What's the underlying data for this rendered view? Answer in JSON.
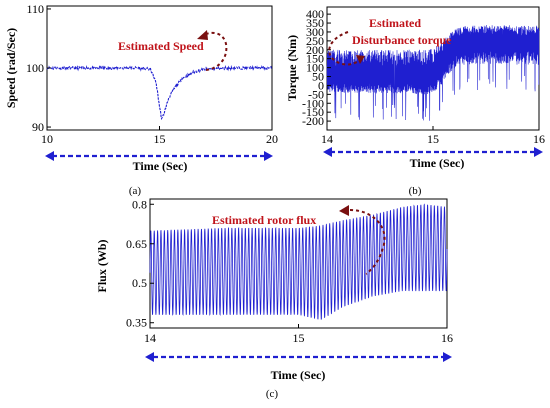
{
  "chart_data": [
    {
      "id": "a",
      "type": "line",
      "panel_label": "(a)",
      "annotation": "Estimated Speed",
      "xlabel": "Time (Sec)",
      "ylabel": "Speed (rad/Sec)",
      "xlim": [
        10,
        20
      ],
      "ylim": [
        89.5,
        110.5
      ],
      "xticks": [
        10,
        15,
        20
      ],
      "yticks": [
        90,
        100,
        110
      ],
      "color": "#1f1fd0",
      "series": [
        {
          "x": [
            10,
            11,
            12,
            13,
            14,
            14.6,
            14.85,
            15.0,
            15.1,
            15.2,
            15.4,
            15.7,
            16.0,
            16.5,
            17.0,
            18,
            19,
            20
          ],
          "y": [
            100,
            100,
            100,
            100,
            100,
            99.8,
            97.5,
            93.5,
            91.3,
            92.3,
            94.8,
            96.8,
            98.2,
            99.3,
            99.8,
            100,
            100,
            100
          ]
        }
      ]
    },
    {
      "id": "b",
      "type": "line",
      "panel_label": "(b)",
      "annotation_lines": [
        "Estimated",
        "Disturbance torque"
      ],
      "xlabel": "Time (Sec)",
      "ylabel": "Torque (Nm)",
      "xlim": [
        14,
        16
      ],
      "ylim": [
        -250,
        440
      ],
      "xticks": [
        14,
        15,
        16
      ],
      "yticks": [
        400,
        350,
        300,
        250,
        200,
        150,
        100,
        50,
        0,
        -50,
        -100,
        -150,
        -200
      ],
      "color": "#1f1fd0",
      "envelope": {
        "x": [
          14.0,
          14.5,
          15.0,
          15.05,
          15.15,
          15.25,
          15.5,
          16.0
        ],
        "upper": [
          200,
          200,
          205,
          230,
          290,
          330,
          340,
          335
        ],
        "lower": [
          -40,
          -45,
          -50,
          -20,
          60,
          110,
          120,
          115
        ],
        "mean": [
          50,
          50,
          50,
          80,
          170,
          240,
          250,
          245
        ]
      }
    },
    {
      "id": "c",
      "type": "line",
      "panel_label": "(c)",
      "annotation": "Estimated rotor flux",
      "xlabel": "Time (Sec)",
      "ylabel": "Flux (Wb)",
      "xlim": [
        14,
        16
      ],
      "ylim": [
        0.33,
        0.82
      ],
      "xticks": [
        14,
        15,
        16
      ],
      "yticks": [
        0.35,
        0.5,
        0.65,
        0.8
      ],
      "color": "#1f1fd0",
      "oscillation_cycles": 88,
      "envelope": {
        "x": [
          14.0,
          14.5,
          15.0,
          15.15,
          15.3,
          15.5,
          15.7,
          15.85,
          16.0
        ],
        "upper": [
          0.7,
          0.71,
          0.71,
          0.72,
          0.74,
          0.76,
          0.79,
          0.8,
          0.79
        ],
        "lower": [
          0.38,
          0.38,
          0.38,
          0.36,
          0.41,
          0.45,
          0.47,
          0.47,
          0.47
        ]
      }
    }
  ]
}
